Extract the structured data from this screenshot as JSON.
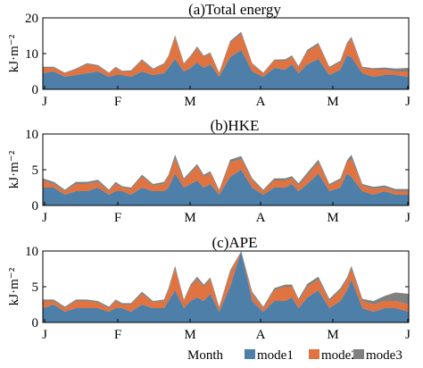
{
  "colors": {
    "mode1": "#4d7fa9",
    "mode2": "#e0733f",
    "mode3": "#808080"
  },
  "legend": {
    "prefix": "Month",
    "items": [
      "mode1",
      "mode2",
      "mode3"
    ]
  },
  "month_labels": [
    "J",
    "F",
    "M",
    "A",
    "M",
    "J"
  ],
  "chart_data": [
    {
      "type": "area",
      "stacked": true,
      "title": "(a)Total energy",
      "xlabel": "",
      "ylabel": "kJ·m⁻²",
      "ylim": [
        0,
        20
      ],
      "yticks": [
        0,
        10,
        20
      ],
      "xticks": [
        "J",
        "F",
        "M",
        "A",
        "M",
        "J"
      ],
      "x_days": [
        0,
        5,
        10,
        15,
        20,
        25,
        30,
        33,
        36,
        40,
        45,
        50,
        55,
        57,
        60,
        64,
        67,
        70,
        73,
        76,
        80,
        85,
        90,
        95,
        100,
        105,
        110,
        113,
        116,
        120,
        125,
        130,
        135,
        138,
        140,
        145,
        150,
        155,
        160,
        166
      ],
      "series": [
        {
          "name": "mode1",
          "values": [
            4.5,
            5,
            3.5,
            4,
            4.5,
            5,
            3.5,
            4,
            4,
            3.5,
            5,
            4,
            4.5,
            6,
            8.5,
            5,
            6,
            7.5,
            6,
            7,
            3.5,
            9,
            11,
            5,
            3.5,
            6,
            5.5,
            7,
            4.5,
            7,
            8.5,
            4,
            5.5,
            9.5,
            9,
            4.5,
            3.5,
            4,
            4,
            3.5
          ]
        },
        {
          "name": "mode2",
          "values": [
            1.5,
            1,
            1,
            1.5,
            2.5,
            1.5,
            1,
            2,
            1,
            1.5,
            3,
            1.5,
            2.5,
            3,
            6,
            2,
            3,
            4,
            3,
            3,
            1,
            4,
            4.5,
            2,
            1,
            2,
            2.5,
            2,
            1.5,
            3.5,
            4,
            2,
            2,
            3,
            5,
            1.5,
            2,
            1.5,
            1,
            1.5
          ]
        },
        {
          "name": "mode3",
          "values": [
            0.3,
            0.3,
            0.2,
            0.3,
            0.3,
            0.3,
            0.2,
            0.3,
            0.2,
            0.3,
            0.4,
            0.3,
            0.3,
            0.4,
            0.6,
            0.3,
            0.4,
            0.5,
            0.4,
            0.3,
            0.2,
            0.5,
            0.6,
            0.3,
            0.2,
            0.3,
            0.4,
            0.5,
            0.5,
            0.6,
            0.5,
            0.3,
            0.5,
            0.5,
            0.7,
            0.3,
            0.4,
            0.6,
            0.8,
            1.0
          ]
        }
      ]
    },
    {
      "type": "area",
      "stacked": true,
      "title": "(b)HKE",
      "xlabel": "",
      "ylabel": "kJ·m⁻²",
      "ylim": [
        0,
        10
      ],
      "yticks": [
        0,
        5,
        10
      ],
      "xticks": [
        "J",
        "F",
        "M",
        "A",
        "M",
        "J"
      ],
      "x_days": [
        0,
        5,
        10,
        15,
        20,
        25,
        30,
        33,
        36,
        40,
        45,
        50,
        55,
        57,
        60,
        64,
        67,
        70,
        73,
        76,
        80,
        85,
        90,
        95,
        100,
        105,
        110,
        113,
        116,
        120,
        125,
        130,
        135,
        138,
        140,
        145,
        150,
        155,
        160,
        166
      ],
      "series": [
        {
          "name": "mode1",
          "values": [
            2.5,
            2.5,
            1.5,
            2,
            2,
            2.5,
            1.5,
            2,
            2,
            1.5,
            2.5,
            2,
            2,
            2.5,
            4.5,
            2.5,
            3,
            3.5,
            2.5,
            3,
            1.5,
            4,
            5,
            2.5,
            1.5,
            2.5,
            2.5,
            3,
            2,
            3,
            4.5,
            2,
            2.5,
            4.5,
            4,
            2,
            1.5,
            2,
            1.5,
            1.5
          ]
        },
        {
          "name": "mode2",
          "values": [
            1,
            0.5,
            0.5,
            1,
            1,
            0.8,
            0.5,
            1,
            0.5,
            0.8,
            1.5,
            0.8,
            1,
            1.5,
            2,
            1,
            1.5,
            2,
            1.5,
            1.5,
            0.5,
            2,
            1.5,
            1,
            0.5,
            1,
            1,
            0.8,
            0.8,
            1.2,
            1.5,
            0.8,
            1,
            1.5,
            2.5,
            0.8,
            0.8,
            0.5,
            0.5,
            0.5
          ]
        },
        {
          "name": "mode3",
          "values": [
            0.3,
            0.3,
            0.2,
            0.3,
            0.3,
            0.3,
            0.2,
            0.3,
            0.2,
            0.2,
            0.3,
            0.2,
            0.3,
            0.3,
            0.6,
            0.3,
            0.3,
            0.3,
            0.3,
            0.3,
            0.2,
            0.4,
            0.4,
            0.3,
            0.2,
            0.3,
            0.3,
            0.3,
            0.3,
            0.4,
            0.4,
            0.2,
            0.3,
            0.3,
            0.6,
            0.2,
            0.3,
            0.3,
            0.3,
            0.3
          ]
        }
      ]
    },
    {
      "type": "area",
      "stacked": true,
      "title": "(c)APE",
      "xlabel": "Month",
      "ylabel": "kJ·m⁻²",
      "ylim": [
        0,
        10
      ],
      "yticks": [
        0,
        5,
        10
      ],
      "xticks": [
        "J",
        "F",
        "M",
        "A",
        "M",
        "J"
      ],
      "x_days": [
        0,
        5,
        10,
        15,
        20,
        25,
        30,
        33,
        36,
        40,
        45,
        50,
        55,
        57,
        60,
        64,
        67,
        70,
        73,
        76,
        80,
        85,
        90,
        95,
        100,
        105,
        110,
        113,
        116,
        120,
        125,
        130,
        135,
        138,
        140,
        145,
        150,
        155,
        160,
        166
      ],
      "series": [
        {
          "name": "mode1",
          "values": [
            2,
            2.5,
            1.5,
            2,
            2,
            2,
            1.5,
            2,
            2,
            1.5,
            2.5,
            2,
            2,
            3,
            4.5,
            2,
            3,
            3.5,
            3,
            4,
            1.5,
            5,
            10,
            3,
            1.5,
            3,
            3,
            3.5,
            2,
            3.5,
            4.5,
            2,
            3,
            4.5,
            6,
            2,
            1.5,
            2,
            2,
            1.5
          ]
        },
        {
          "name": "mode2",
          "values": [
            1,
            0.5,
            0.5,
            1,
            1,
            0.8,
            0.5,
            1,
            0.5,
            1,
            1.5,
            0.8,
            1,
            1.5,
            3,
            1,
            2,
            2.5,
            2,
            2,
            0.5,
            2,
            0.5,
            1,
            0.5,
            1.5,
            2,
            1.5,
            1,
            1.5,
            1.5,
            1,
            1.5,
            1.5,
            1.5,
            1,
            1,
            1,
            1,
            1
          ]
        },
        {
          "name": "mode3",
          "values": [
            0.2,
            0.2,
            0.2,
            0.2,
            0.2,
            0.2,
            0.2,
            0.2,
            0.2,
            0.2,
            0.3,
            0.2,
            0.2,
            0.3,
            0.4,
            0.2,
            0.3,
            0.4,
            0.3,
            0.3,
            0.2,
            0.3,
            0.3,
            0.3,
            0.2,
            0.3,
            0.3,
            0.3,
            0.3,
            0.4,
            0.4,
            0.3,
            0.3,
            0.3,
            0.4,
            0.3,
            0.5,
            0.7,
            1.2,
            1.5
          ]
        }
      ]
    }
  ]
}
